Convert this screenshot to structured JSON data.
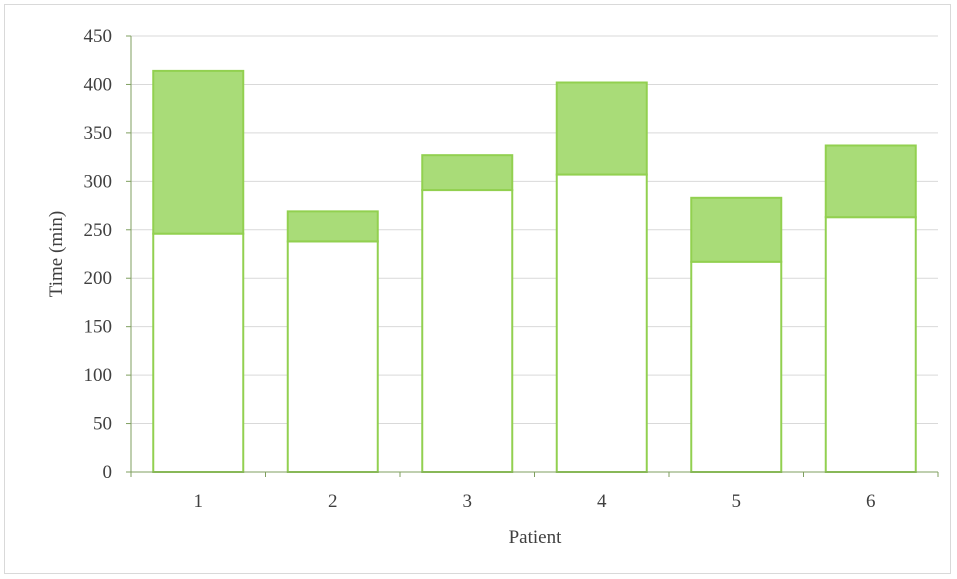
{
  "chart_data": {
    "type": "bar",
    "stacked": true,
    "xlabel": "Patient",
    "ylabel": "Time (min)",
    "ylim": [
      0,
      450
    ],
    "ytick_step": 50,
    "grid": true,
    "categories": [
      "1",
      "2",
      "3",
      "4",
      "5",
      "6"
    ],
    "series": [
      {
        "values": [
          246,
          238,
          291,
          307,
          217,
          263
        ],
        "fill": "#ffffff",
        "stroke": "#92d050"
      },
      {
        "values": [
          168,
          31,
          36,
          95,
          66,
          74
        ],
        "fill": "#a9dc78",
        "stroke": "#92d050"
      }
    ],
    "colors": {
      "gridline": "#d9d9d9",
      "axis": "#7f9f5f"
    }
  }
}
